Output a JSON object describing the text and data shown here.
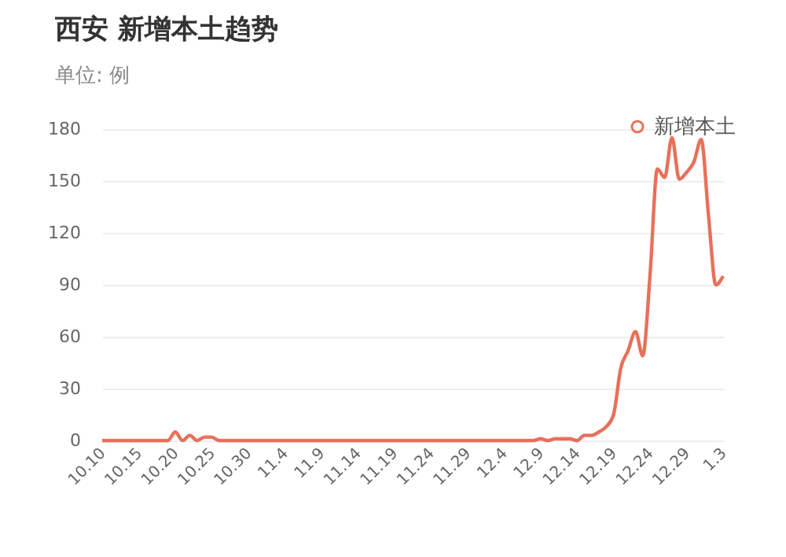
{
  "chart_data": {
    "type": "line",
    "title": "西安 新增本土趋势",
    "subtitle": "单位: 例",
    "categories": [
      "10.10",
      null,
      null,
      null,
      null,
      "10.15",
      null,
      null,
      null,
      null,
      "10.20",
      null,
      null,
      null,
      null,
      "10.25",
      null,
      null,
      null,
      null,
      "10.30",
      null,
      null,
      null,
      null,
      "11.4",
      null,
      null,
      null,
      null,
      "11.9",
      null,
      null,
      null,
      null,
      "11.14",
      null,
      null,
      null,
      null,
      "11.19",
      null,
      null,
      null,
      null,
      "11.24",
      null,
      null,
      null,
      null,
      "11.29",
      null,
      null,
      null,
      null,
      "12.4",
      null,
      null,
      null,
      null,
      "12.9",
      null,
      null,
      null,
      null,
      "12.14",
      null,
      null,
      null,
      null,
      "12.19",
      null,
      null,
      null,
      null,
      "12.24",
      null,
      null,
      null,
      null,
      "12.29",
      null,
      null,
      null,
      null,
      "1.3"
    ],
    "series": [
      {
        "name": "新增本土",
        "color": "#e8705a",
        "values": [
          0,
          0,
          0,
          0,
          0,
          0,
          0,
          0,
          0,
          0,
          5,
          0,
          3,
          0,
          2,
          2,
          0,
          0,
          0,
          0,
          0,
          0,
          0,
          0,
          0,
          0,
          0,
          0,
          0,
          0,
          0,
          0,
          0,
          0,
          0,
          0,
          0,
          0,
          0,
          0,
          0,
          0,
          0,
          0,
          0,
          0,
          0,
          0,
          0,
          0,
          0,
          0,
          0,
          0,
          0,
          0,
          0,
          0,
          0,
          0,
          1,
          0,
          1,
          1,
          1,
          0,
          3,
          3,
          5,
          8,
          15,
          42,
          52,
          63,
          49,
          96,
          157,
          152,
          175,
          151,
          155,
          161,
          174,
          130,
          90,
          95
        ]
      }
    ],
    "ylim": [
      0,
      180
    ],
    "yticks": [
      0,
      30,
      60,
      90,
      120,
      150,
      180
    ],
    "grid": "y",
    "legend": "top right",
    "marker": "none",
    "line_style": "solid"
  }
}
